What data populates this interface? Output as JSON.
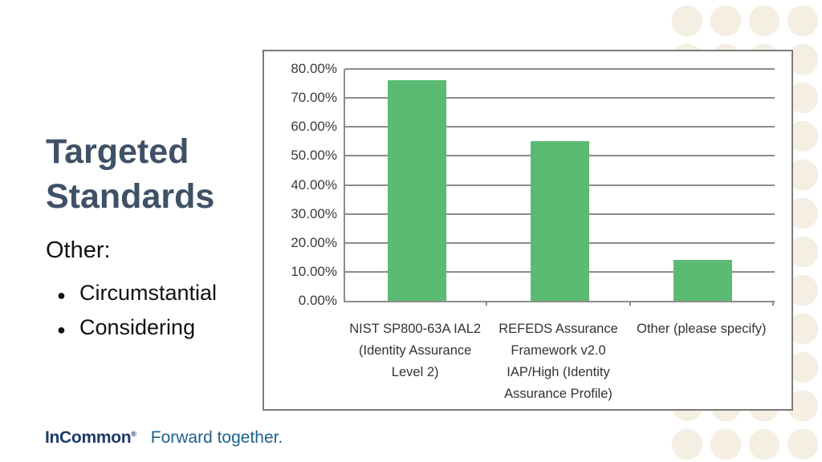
{
  "slide": {
    "title": "Targeted Standards",
    "other_heading": "Other:",
    "bullet_glyph": "●",
    "bullets": [
      "Circumstantial",
      "Considering"
    ],
    "footer": {
      "brand": "InCommon",
      "registered_mark": "®",
      "tagline": "Forward together."
    }
  },
  "chart_data": {
    "type": "bar",
    "categories": [
      "NIST SP800-63A IAL2 (Identity Assurance Level 2)",
      "REFEDS Assurance Framework v2.0 IAP/High (Identity Assurance Profile)",
      "Other (please specify)"
    ],
    "values": [
      76,
      55,
      14
    ],
    "title": "",
    "xlabel": "",
    "ylabel": "",
    "ylim": [
      0,
      80
    ],
    "ytick_step": 10,
    "ytick_labels": [
      "0.00%",
      "10.00%",
      "20.00%",
      "30.00%",
      "40.00%",
      "50.00%",
      "60.00%",
      "70.00%",
      "80.00%"
    ],
    "grid": true,
    "legend": false,
    "bar_color": "#5bbb73"
  },
  "colors": {
    "title": "#3f5166",
    "bar_green": "#5bbb73",
    "chart_frame_gray": "#7a7a7a",
    "axis_gray": "#8c8c8c",
    "brand_navy": "#1b3a68",
    "tagline_blue": "#20618c",
    "dot_pattern_cream": "#f4efe2"
  }
}
